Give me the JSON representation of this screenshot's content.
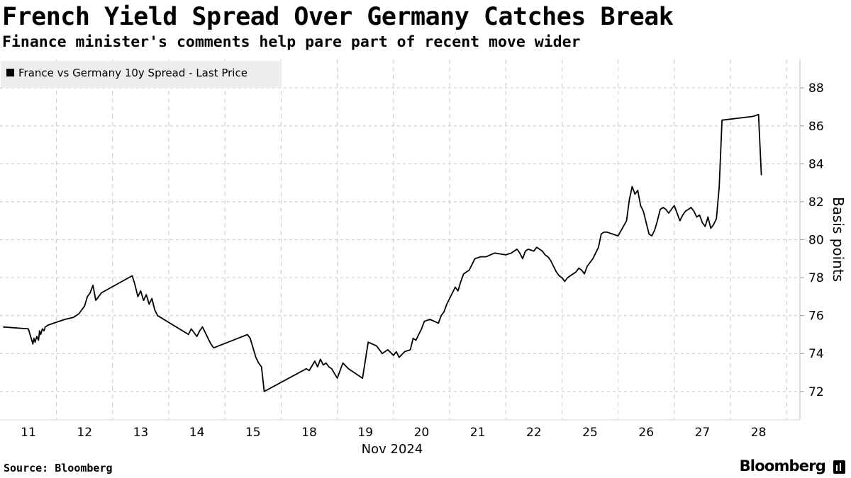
{
  "chart_data": {
    "type": "line",
    "title": "French Yield Spread Over Germany Catches Break",
    "subtitle": "Finance minister's comments help pare part of recent move wider",
    "legend": "France vs Germany 10y Spread - Last Price",
    "ylabel": "Basis points",
    "xlabel": "Nov 2024",
    "ylim": [
      70.5,
      89.5
    ],
    "yticks": [
      72,
      74,
      76,
      78,
      80,
      82,
      84,
      86,
      88
    ],
    "categories": [
      "11",
      "12",
      "13",
      "14",
      "15",
      "18",
      "19",
      "20",
      "21",
      "22",
      "25",
      "26",
      "27",
      "28"
    ],
    "series": [
      {
        "name": "France vs Germany 10y Spread - Last Price",
        "x": [
          -0.45,
          0.0,
          0.05,
          0.08,
          0.1,
          0.12,
          0.15,
          0.18,
          0.2,
          0.22,
          0.25,
          0.28,
          0.3,
          0.35,
          0.45,
          0.65,
          0.8,
          0.85,
          0.9,
          0.95,
          1.0,
          1.05,
          1.1,
          1.15,
          1.2,
          1.25,
          1.3,
          1.85,
          1.9,
          1.95,
          2.0,
          2.05,
          2.1,
          2.15,
          2.2,
          2.25,
          2.3,
          2.8,
          2.85,
          2.9,
          3.0,
          3.05,
          3.1,
          3.15,
          3.2,
          3.25,
          3.3,
          3.9,
          3.95,
          4.0,
          4.05,
          4.1,
          4.15,
          4.2,
          4.95,
          5.0,
          5.1,
          5.15,
          5.2,
          5.25,
          5.3,
          5.35,
          5.4,
          5.5,
          5.6,
          5.7,
          5.85,
          5.95,
          6.05,
          6.2,
          6.3,
          6.4,
          6.5,
          6.55,
          6.6,
          6.7,
          6.8,
          6.85,
          6.9,
          6.95,
          7.0,
          7.05,
          7.15,
          7.3,
          7.35,
          7.4,
          7.45,
          7.5,
          7.55,
          7.6,
          7.65,
          7.7,
          7.75,
          7.85,
          7.95,
          8.05,
          8.15,
          8.3,
          8.5,
          8.6,
          8.7,
          8.75,
          8.8,
          8.85,
          8.9,
          9.0,
          9.05,
          9.1,
          9.15,
          9.2,
          9.25,
          9.3,
          9.35,
          9.4,
          9.45,
          9.5,
          9.55,
          9.6,
          9.65,
          9.7,
          9.75,
          9.8,
          9.85,
          9.9,
          9.95,
          10.0,
          10.05,
          10.1,
          10.15,
          10.2,
          10.25,
          10.3,
          10.5,
          10.65,
          10.7,
          10.75,
          10.8,
          10.85,
          10.9,
          10.95,
          11.0,
          11.05,
          11.1,
          11.15,
          11.2,
          11.25,
          11.3,
          11.35,
          11.4,
          11.45,
          11.5,
          11.55,
          11.6,
          11.65,
          11.7,
          11.75,
          11.8,
          11.85,
          11.9,
          11.95,
          12.0,
          12.05,
          12.1,
          12.15,
          12.2,
          12.25,
          12.3,
          12.35,
          12.9,
          13.0,
          13.05
        ],
        "values": [
          75.4,
          75.3,
          74.8,
          74.5,
          74.8,
          74.6,
          74.9,
          74.7,
          75.2,
          75.0,
          75.3,
          75.2,
          75.4,
          75.5,
          75.6,
          75.8,
          75.9,
          76.0,
          76.1,
          76.3,
          76.5,
          77.0,
          77.2,
          77.6,
          76.8,
          77.0,
          77.2,
          78.1,
          77.6,
          77.0,
          77.3,
          76.8,
          77.1,
          76.6,
          76.9,
          76.3,
          76.0,
          75.1,
          75.0,
          75.3,
          74.9,
          75.2,
          75.4,
          75.1,
          74.8,
          74.5,
          74.3,
          75.0,
          74.8,
          74.3,
          73.8,
          73.5,
          73.3,
          72.0,
          73.2,
          73.1,
          73.6,
          73.3,
          73.7,
          73.4,
          73.5,
          73.3,
          73.2,
          72.7,
          73.5,
          73.2,
          72.9,
          72.7,
          74.6,
          74.4,
          74.0,
          74.2,
          73.9,
          74.1,
          73.8,
          74.1,
          74.2,
          74.8,
          74.7,
          75.0,
          75.3,
          75.7,
          75.8,
          75.6,
          76.0,
          76.2,
          76.6,
          76.9,
          77.2,
          77.5,
          77.3,
          77.8,
          78.2,
          78.4,
          79.0,
          79.1,
          79.1,
          79.3,
          79.2,
          79.3,
          79.5,
          79.3,
          79.0,
          79.4,
          79.5,
          79.4,
          79.6,
          79.5,
          79.4,
          79.2,
          79.1,
          78.9,
          78.6,
          78.3,
          78.1,
          78.0,
          77.8,
          78.0,
          78.1,
          78.2,
          78.3,
          78.5,
          78.4,
          78.2,
          78.6,
          78.8,
          79.0,
          79.3,
          79.6,
          80.3,
          80.4,
          80.4,
          80.2,
          81.0,
          82.1,
          82.8,
          82.4,
          82.6,
          81.8,
          81.5,
          80.9,
          80.3,
          80.2,
          80.5,
          81.0,
          81.6,
          81.7,
          81.6,
          81.4,
          81.6,
          81.8,
          81.4,
          81.0,
          81.3,
          81.5,
          81.6,
          81.7,
          81.5,
          81.2,
          81.3,
          80.9,
          80.7,
          81.2,
          80.6,
          80.8,
          81.1,
          82.8,
          86.3,
          86.5,
          86.6,
          83.4
        ]
      }
    ]
  },
  "source": "Source: Bloomberg",
  "brand": "Bloomberg"
}
